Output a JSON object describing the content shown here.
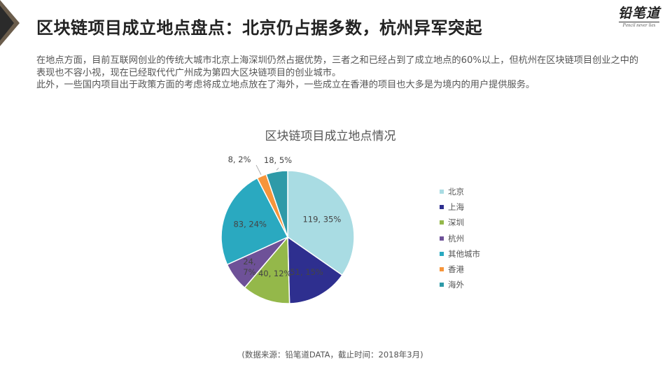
{
  "header": {
    "title": "区块链项目成立地点盘点：北京仍占据多数，杭州异军突起",
    "logo_text": "铅笔道",
    "logo_sub": "Pencil never lies"
  },
  "description": {
    "paragraph1": "在地点方面，目前互联网创业的传统大城市北京上海深圳仍然占据优势，三者之和已经占到了成立地点的60%以上，但杭州在区块链项目创业之中的表现也不容小视，现在已经取代代广州成为第四大区块链项目的创业城市。",
    "paragraph2": "此外，一些国内项目出于政策方面的考虑将成立地点放在了海外，一些成立在香港的项目也大多是为境内的用户提供服务。"
  },
  "chart_data": {
    "type": "pie",
    "title": "区块链项目成立地点情况",
    "legend_position": "right",
    "categories": [
      "北京",
      "上海",
      "深圳",
      "杭州",
      "其他城市",
      "香港",
      "海外"
    ],
    "values": [
      119,
      51,
      40,
      24,
      83,
      8,
      18
    ],
    "percent_labels": [
      "35%",
      "15%",
      "12%",
      "7%",
      "24%",
      "2%",
      "5%"
    ],
    "data_labels": [
      "119, 35%",
      "51, 15%",
      "40, 12%",
      "24, 7%",
      "83, 24%",
      "8, 2%",
      "18, 5%"
    ],
    "colors": [
      "#a9dce3",
      "#2e2f8f",
      "#94b84a",
      "#6e5198",
      "#2aa9c0",
      "#f6953b",
      "#2e9aa8"
    ]
  },
  "footer": {
    "source": "(数据来源：铅笔道DATA，截止时间：2018年3月)"
  }
}
